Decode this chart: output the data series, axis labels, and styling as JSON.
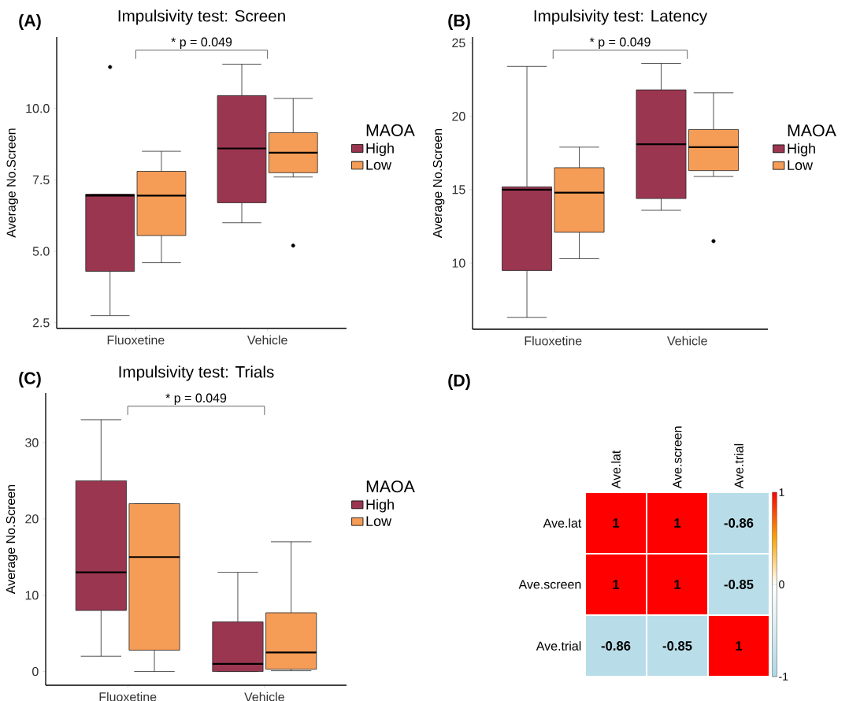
{
  "chart_data": [
    {
      "type": "box",
      "title": "Impulsivity test: Screen",
      "ylabel": "Average No.Screen",
      "categories": [
        "Fluoxetine",
        "Vehicle"
      ],
      "legend_title": "MAOA",
      "legend": "right",
      "ylim": [
        2.3,
        12.5
      ],
      "yticks": [
        2.5,
        {
          "value": 5,
          "label": "5.0"
        },
        7.5,
        {
          "value": 10,
          "label": "10.0"
        }
      ],
      "annotations": [
        "(A)",
        "* p = 0.049"
      ],
      "series": [
        {
          "name": "High",
          "color": "#9b3651",
          "boxes": [
            {
              "low": 2.75,
              "q1": 4.3,
              "median": 6.95,
              "q3": 7.0,
              "high": 7.0,
              "outliers": [
                11.45
              ]
            },
            {
              "low": 6.0,
              "q1": 6.7,
              "median": 8.6,
              "q3": 10.45,
              "high": 11.55
            }
          ]
        },
        {
          "name": "Low",
          "color": "#f59c57",
          "boxes": [
            {
              "low": 4.6,
              "q1": 5.55,
              "median": 6.95,
              "q3": 7.8,
              "high": 8.5
            },
            {
              "low": 7.6,
              "q1": 7.75,
              "median": 8.45,
              "q3": 9.15,
              "high": 10.35,
              "outliers": [
                5.2
              ]
            }
          ]
        }
      ]
    },
    {
      "type": "box",
      "title": "Impulsivity test: Latency",
      "ylabel": "Average No.Screen",
      "categories": [
        "Fluoxetine",
        "Vehicle"
      ],
      "legend_title": "MAOA",
      "legend": "right",
      "ylim": [
        5.5,
        25.4
      ],
      "yticks": [
        10,
        15,
        20,
        25
      ],
      "annotations": [
        "(B)",
        "* p = 0.049"
      ],
      "series": [
        {
          "name": "High",
          "color": "#9b3651",
          "boxes": [
            {
              "low": 6.3,
              "q1": 9.5,
              "median": 15.0,
              "q3": 15.2,
              "high": 23.4
            },
            {
              "low": 13.6,
              "q1": 14.4,
              "median": 18.1,
              "q3": 21.8,
              "high": 23.6
            }
          ]
        },
        {
          "name": "Low",
          "color": "#f59c57",
          "boxes": [
            {
              "low": 10.3,
              "q1": 12.1,
              "median": 14.8,
              "q3": 16.5,
              "high": 17.9
            },
            {
              "low": 15.9,
              "q1": 16.3,
              "median": 17.9,
              "q3": 19.1,
              "high": 21.6,
              "outliers": [
                11.5
              ]
            }
          ]
        }
      ]
    },
    {
      "type": "box",
      "title": "Impulsivity test: Trials",
      "ylabel": "Average No.Screen",
      "categories": [
        "Fluoxetine",
        "Vehicle"
      ],
      "legend_title": "MAOA",
      "legend": "right",
      "ylim": [
        -1.8,
        36.5
      ],
      "yticks": [
        0,
        10,
        20,
        30
      ],
      "annotations": [
        "(C)",
        "* p = 0.049"
      ],
      "series": [
        {
          "name": "High",
          "color": "#9b3651",
          "boxes": [
            {
              "low": 2,
              "q1": 8,
              "median": 13,
              "q3": 25,
              "high": 33
            },
            {
              "low": 0,
              "q1": 0,
              "median": 1,
              "q3": 6.5,
              "high": 13
            }
          ]
        },
        {
          "name": "Low",
          "color": "#f59c57",
          "boxes": [
            {
              "low": 0,
              "q1": 2.8,
              "median": 15,
              "q3": 22,
              "high": 22
            },
            {
              "low": 0.1,
              "q1": 0.3,
              "median": 2.5,
              "q3": 7.7,
              "high": 17
            }
          ]
        }
      ]
    },
    {
      "type": "heatmap",
      "categories": [
        "Ave.lat",
        "Ave.screen",
        "Ave.trial"
      ],
      "y_categories": [
        "Ave.lat",
        "Ave.screen",
        "Ave.trial"
      ],
      "cells": [
        [
          1,
          1,
          -0.86
        ],
        [
          1,
          1,
          -0.85
        ],
        [
          -0.86,
          -0.85,
          1
        ]
      ],
      "data_labels": true,
      "clim": [
        -1,
        1
      ],
      "cticks": [
        -1,
        0,
        1
      ],
      "annotations": [
        "(D)"
      ]
    }
  ]
}
